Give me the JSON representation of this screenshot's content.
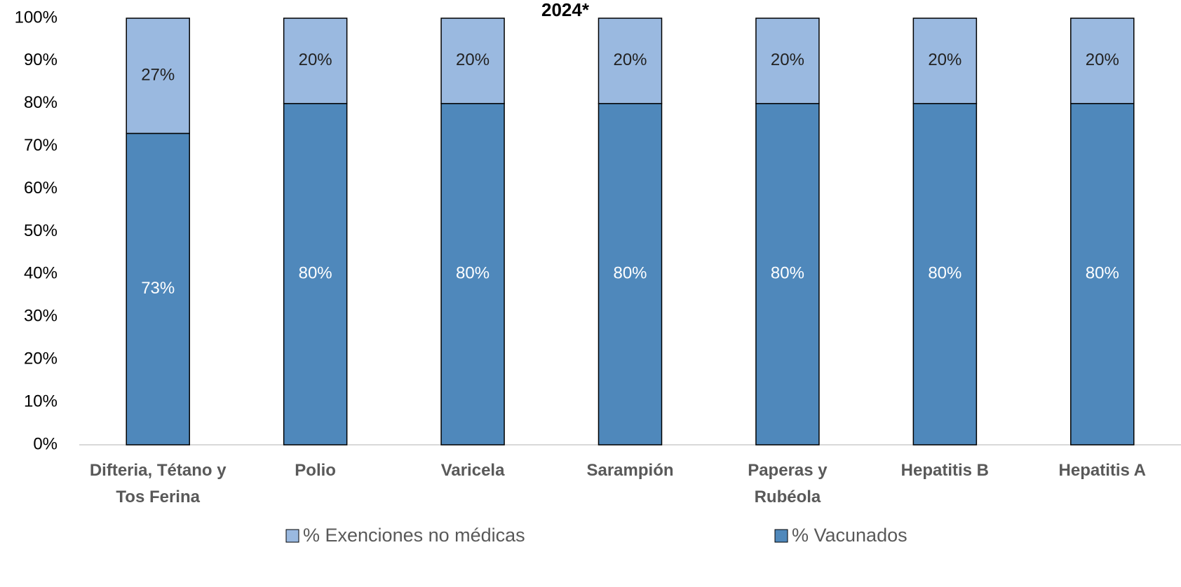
{
  "chart_data": {
    "type": "stacked_bar",
    "title": "2024*",
    "categories": [
      "Difteria, Tétano y Tos Ferina",
      "Polio",
      "Varicela",
      "Sarampión",
      "Paperas y Rubéola",
      "Hepatitis B",
      "Hepatitis A"
    ],
    "series": [
      {
        "name": "% Exenciones no médicas",
        "color": "#9ab9e0",
        "values": [
          27,
          20,
          20,
          20,
          20,
          20,
          20
        ],
        "value_labels": [
          "27%",
          "20%",
          "20%",
          "20%",
          "20%",
          "20%",
          "20%"
        ]
      },
      {
        "name": "% Vacunados",
        "color": "#4f88bb",
        "values": [
          73,
          80,
          80,
          80,
          80,
          80,
          80
        ],
        "value_labels": [
          "73%",
          "80%",
          "80%",
          "80%",
          "80%",
          "80%",
          "80%"
        ]
      }
    ],
    "ylim": [
      0,
      100
    ],
    "yticks": [
      {
        "value": 0,
        "label": "0%"
      },
      {
        "value": 10,
        "label": "10%"
      },
      {
        "value": 20,
        "label": "20%"
      },
      {
        "value": 30,
        "label": "30%"
      },
      {
        "value": 40,
        "label": "40%"
      },
      {
        "value": 50,
        "label": "50%"
      },
      {
        "value": 60,
        "label": "60%"
      },
      {
        "value": 70,
        "label": "70%"
      },
      {
        "value": 80,
        "label": "80%"
      },
      {
        "value": 90,
        "label": "90%"
      },
      {
        "value": 100,
        "label": "100%"
      }
    ],
    "grid": false,
    "legend": "bottom"
  }
}
